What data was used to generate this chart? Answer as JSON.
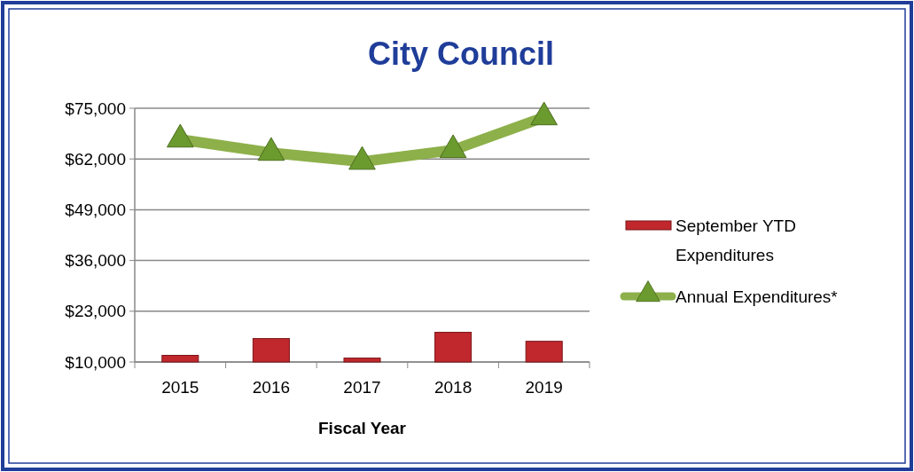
{
  "chart_data": {
    "type": "bar",
    "title": "City Council",
    "xlabel": "Fiscal Year",
    "categories": [
      "2015",
      "2016",
      "2017",
      "2018",
      "2019"
    ],
    "series": [
      {
        "name": "September YTD Expenditures",
        "color": "#c0282d",
        "values": [
          11700,
          16000,
          11000,
          17600,
          15300
        ]
      },
      {
        "name": "Annual Expenditures*",
        "type": "line",
        "color": "#8db04a",
        "marker": "triangle",
        "values": [
          67000,
          63600,
          61300,
          64300,
          72700
        ]
      }
    ],
    "ylim": [
      10000,
      75000
    ],
    "yticks": [
      {
        "value": 10000,
        "label": "$10,000"
      },
      {
        "value": 23000,
        "label": "$23,000"
      },
      {
        "value": 36000,
        "label": "$36,000"
      },
      {
        "value": 49000,
        "label": "$49,000"
      },
      {
        "value": 62000,
        "label": "$62,000"
      },
      {
        "value": 75000,
        "label": "$75,000"
      }
    ],
    "grid": "y",
    "legend": "right"
  }
}
